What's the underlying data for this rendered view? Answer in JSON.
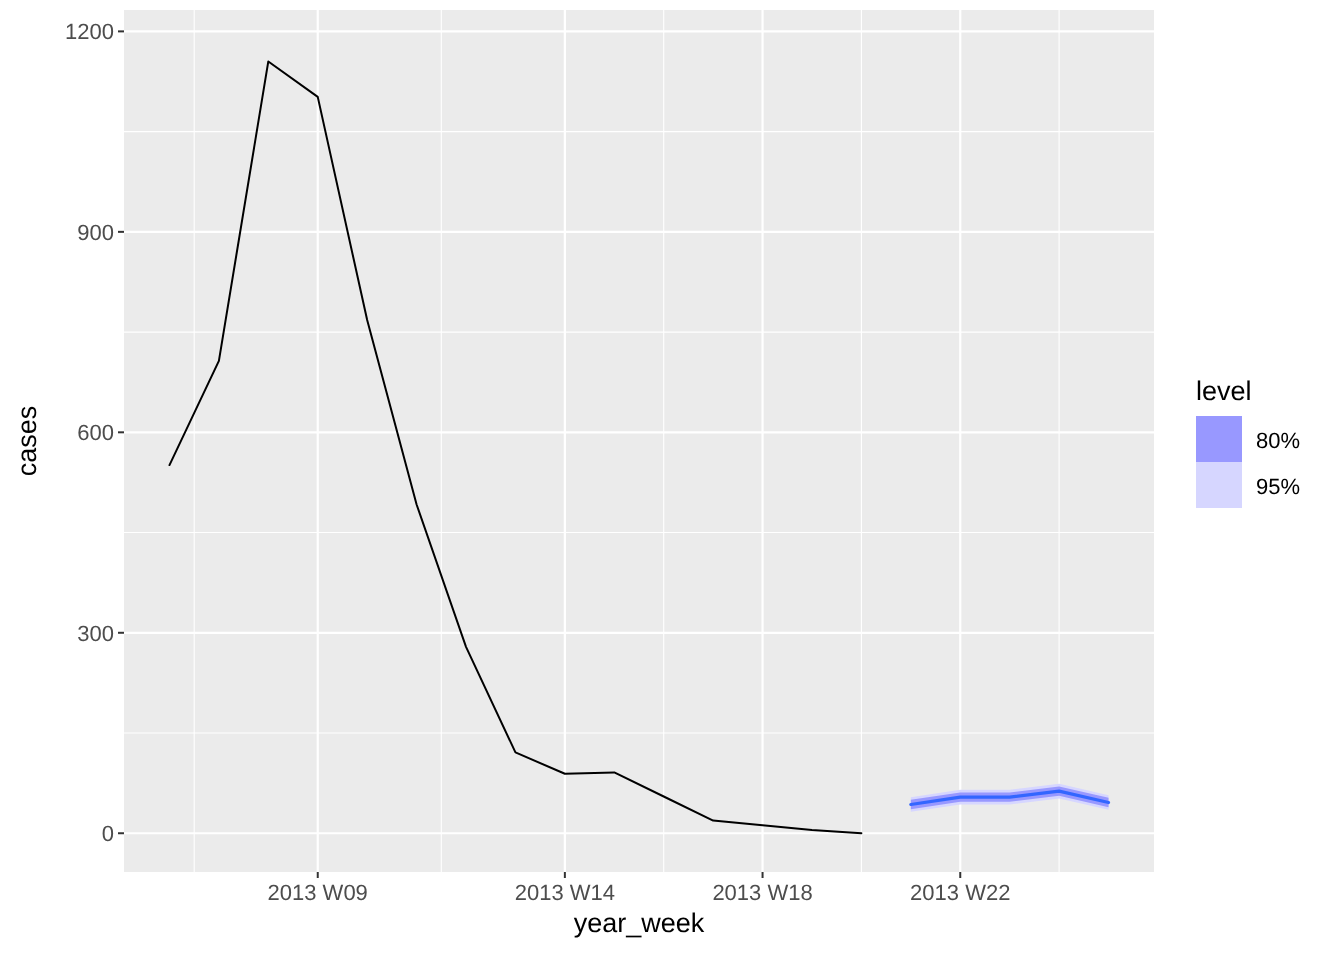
{
  "chart_data": {
    "type": "line",
    "xlabel": "year_week",
    "ylabel": "cases",
    "legend_title": "level",
    "legend": "right",
    "grid": true,
    "categories": [
      null,
      null,
      null,
      "2013 W09",
      null,
      null,
      null,
      null,
      "2013 W14",
      null,
      null,
      null,
      "2013 W18",
      null,
      null,
      null,
      "2013 W22",
      null,
      null,
      null
    ],
    "ylim": [
      -58,
      1232
    ],
    "yticks": [
      0,
      300,
      600,
      900,
      1200
    ],
    "series": [
      {
        "color": "#000000",
        "values": [
          551,
          707,
          1155,
          1102,
          768,
          492,
          279,
          121,
          89,
          91,
          55,
          19,
          12,
          5,
          0,
          null,
          null,
          null,
          null,
          null
        ]
      },
      {
        "name": "80%",
        "color": "#9898ff",
        "values": [
          null,
          null,
          null,
          null,
          null,
          null,
          null,
          null,
          null,
          null,
          null,
          null,
          null,
          null,
          null,
          null,
          null,
          null,
          null,
          null
        ],
        "lower": [
          null,
          null,
          null,
          null,
          null,
          null,
          null,
          null,
          null,
          null,
          null,
          null,
          null,
          null,
          null,
          36,
          47,
          47,
          56,
          39
        ],
        "upper": [
          null,
          null,
          null,
          null,
          null,
          null,
          null,
          null,
          null,
          null,
          null,
          null,
          null,
          null,
          null,
          50,
          61,
          61,
          70,
          53
        ]
      },
      {
        "name": "95%",
        "color": "#d6d6ff",
        "values": [
          null,
          null,
          null,
          null,
          null,
          null,
          null,
          null,
          null,
          null,
          null,
          null,
          null,
          null,
          null,
          null,
          null,
          null,
          null,
          null
        ],
        "lower": [
          null,
          null,
          null,
          null,
          null,
          null,
          null,
          null,
          null,
          null,
          null,
          null,
          null,
          null,
          null,
          32,
          43,
          43,
          52,
          35
        ],
        "upper": [
          null,
          null,
          null,
          null,
          null,
          null,
          null,
          null,
          null,
          null,
          null,
          null,
          null,
          null,
          null,
          54,
          65,
          65,
          74,
          57
        ]
      },
      {
        "color": "#3366ff",
        "values": [
          null,
          null,
          null,
          null,
          null,
          null,
          null,
          null,
          null,
          null,
          null,
          null,
          null,
          null,
          null,
          43,
          54,
          54,
          63,
          46
        ]
      }
    ]
  }
}
